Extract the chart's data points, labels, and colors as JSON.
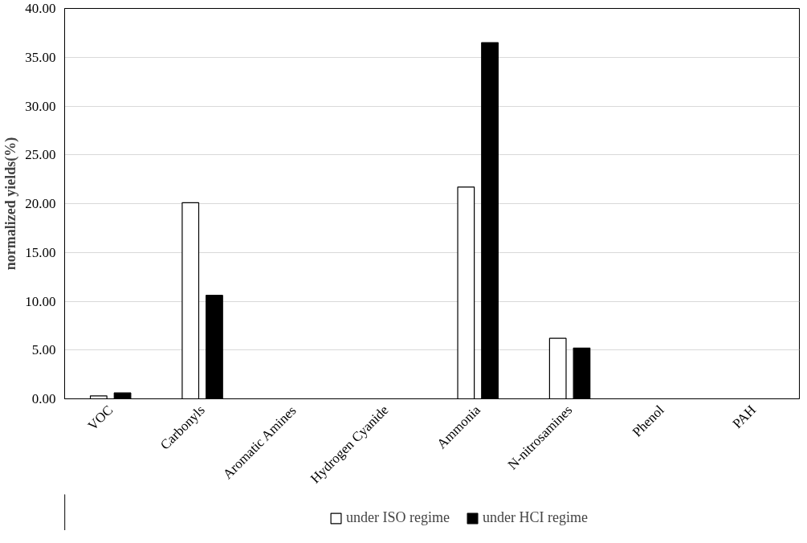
{
  "chart_data": {
    "type": "bar",
    "ylabel": "normalized yields(%)",
    "categories": [
      "VOC",
      "Carbonyls",
      "Aromatic Amines",
      "Hydrogen Cyanide",
      "Ammonia",
      "N-nitrosamines",
      "Phenol",
      "PAH"
    ],
    "series": [
      {
        "name": "under ISO regime",
        "color": "#ffffff",
        "values": [
          0.3,
          20.1,
          null,
          null,
          21.7,
          6.2,
          null,
          null
        ]
      },
      {
        "name": "under HCI regime",
        "color": "#000000",
        "values": [
          0.6,
          10.6,
          null,
          null,
          36.5,
          5.2,
          null,
          null
        ]
      }
    ],
    "ylim": [
      0,
      40
    ],
    "yticks": [
      {
        "value": 0,
        "label": "0.00"
      },
      {
        "value": 5,
        "label": "5.00"
      },
      {
        "value": 10,
        "label": "10.00"
      },
      {
        "value": 15,
        "label": "15.00"
      },
      {
        "value": 20,
        "label": "20.00"
      },
      {
        "value": 25,
        "label": "25.00"
      },
      {
        "value": 30,
        "label": "30.00"
      },
      {
        "value": 35,
        "label": "35.00"
      },
      {
        "value": 40,
        "label": "40.00"
      }
    ],
    "grid": "y",
    "legend": "bottom"
  }
}
